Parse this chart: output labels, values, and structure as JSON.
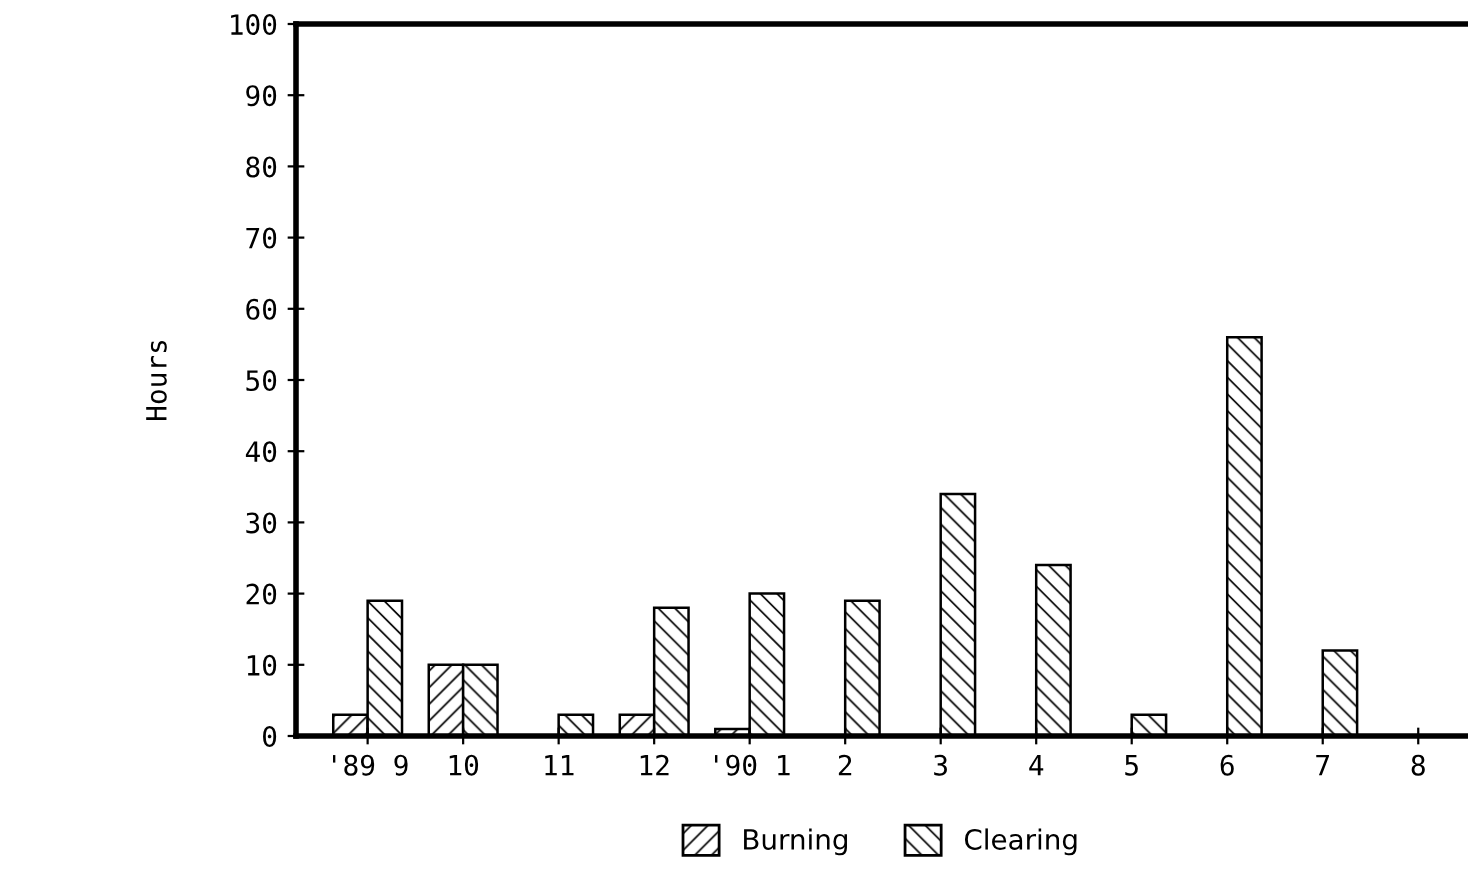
{
  "chart_data": {
    "type": "bar",
    "ylabel": "Hours",
    "categories": [
      "'89 9",
      "10",
      "11",
      "12",
      "'90 1",
      "2",
      "3",
      "4",
      "5",
      "6",
      "7",
      "8"
    ],
    "series": [
      {
        "name": "Burning",
        "color": "#000000",
        "values": [
          3,
          10,
          0,
          3,
          1,
          0,
          0,
          0,
          0,
          0,
          0,
          0
        ]
      },
      {
        "name": "Clearing",
        "color": "#000000",
        "values": [
          19,
          10,
          3,
          18,
          20,
          19,
          34,
          24,
          3,
          56,
          12,
          0
        ]
      }
    ],
    "ylim": [
      0,
      100
    ],
    "yticks": [
      0,
      10,
      20,
      30,
      40,
      50,
      60,
      70,
      80,
      90,
      100
    ],
    "grid": false,
    "legend": "bottom"
  }
}
